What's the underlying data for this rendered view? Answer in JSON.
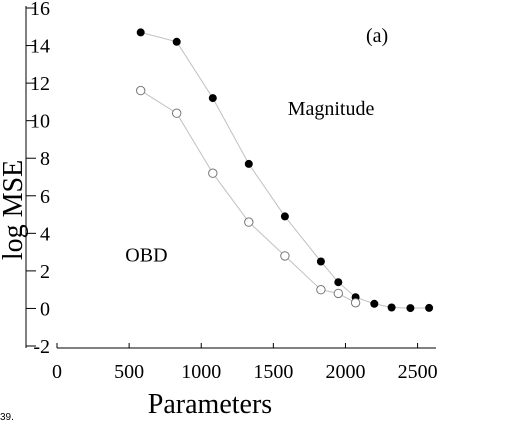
{
  "chart_data": {
    "type": "line",
    "xlabel": "Parameters",
    "ylabel": "log MSE",
    "panel_label": "(a)",
    "xlim": [
      0,
      2600
    ],
    "ylim": [
      -2,
      16
    ],
    "x_ticks": [
      0,
      500,
      1000,
      1500,
      2000,
      2500
    ],
    "y_ticks": [
      -2,
      0,
      2,
      4,
      6,
      8,
      10,
      12,
      14,
      16
    ],
    "series": [
      {
        "name": "Magnitude",
        "marker": "filled-circle",
        "color": "#000000",
        "x": [
          580,
          830,
          1080,
          1330,
          1580,
          1830,
          1950,
          2070,
          2200,
          2320,
          2450,
          2580
        ],
        "y": [
          14.7,
          14.2,
          11.2,
          7.7,
          4.9,
          2.5,
          1.4,
          0.6,
          0.25,
          0.05,
          0.02,
          0.03
        ]
      },
      {
        "name": "OBD",
        "marker": "open-circle",
        "color": "#000000",
        "x": [
          580,
          830,
          1080,
          1330,
          1580,
          1830,
          1950,
          2070
        ],
        "y": [
          11.6,
          10.4,
          7.2,
          4.6,
          2.8,
          1.0,
          0.8,
          0.3
        ]
      }
    ],
    "annotations": [
      {
        "text": "Magnitude",
        "x": 1900,
        "y": 10.3
      },
      {
        "text": "OBD",
        "x": 620,
        "y": 2.5
      }
    ],
    "footer_fragment": "39.",
    "grid": false,
    "line_color": "#c0c0c0"
  }
}
